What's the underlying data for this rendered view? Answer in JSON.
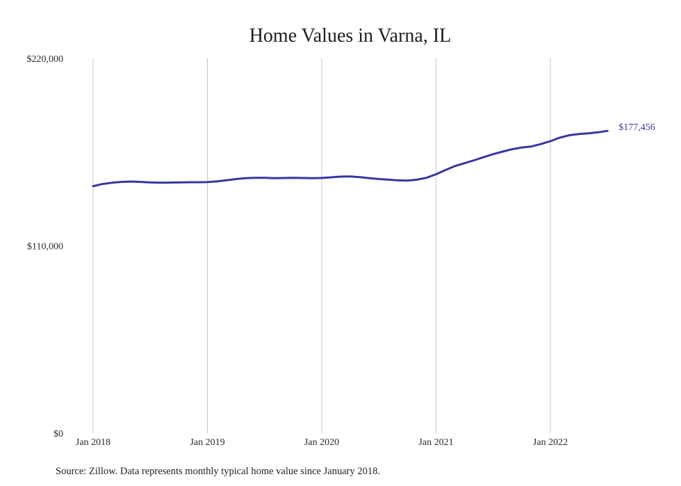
{
  "chart_data": {
    "type": "line",
    "title": "Home Values in Varna, IL",
    "xlabel": "",
    "ylabel": "",
    "ylim": [
      0,
      220000
    ],
    "y_ticks": [
      {
        "value": 0,
        "label": "$0"
      },
      {
        "value": 110000,
        "label": "$110,000"
      },
      {
        "value": 220000,
        "label": "$220,000"
      }
    ],
    "x_ticks": [
      {
        "value": "2018-01",
        "label": "Jan 2018"
      },
      {
        "value": "2019-01",
        "label": "Jan 2019"
      },
      {
        "value": "2020-01",
        "label": "Jan 2020"
      },
      {
        "value": "2021-01",
        "label": "Jan 2021"
      },
      {
        "value": "2022-01",
        "label": "Jan 2022"
      }
    ],
    "grid": {
      "vertical": true,
      "horizontal": false
    },
    "x": [
      "2018-01",
      "2018-02",
      "2018-03",
      "2018-04",
      "2018-05",
      "2018-06",
      "2018-07",
      "2018-08",
      "2018-09",
      "2018-10",
      "2018-11",
      "2018-12",
      "2019-01",
      "2019-02",
      "2019-03",
      "2019-04",
      "2019-05",
      "2019-06",
      "2019-07",
      "2019-08",
      "2019-09",
      "2019-10",
      "2019-11",
      "2019-12",
      "2020-01",
      "2020-02",
      "2020-03",
      "2020-04",
      "2020-05",
      "2020-06",
      "2020-07",
      "2020-08",
      "2020-09",
      "2020-10",
      "2020-11",
      "2020-12",
      "2021-01",
      "2021-02",
      "2021-03",
      "2021-04",
      "2021-05",
      "2021-06",
      "2021-07",
      "2021-08",
      "2021-09",
      "2021-10",
      "2021-11",
      "2021-12",
      "2022-01",
      "2022-02",
      "2022-03",
      "2022-04",
      "2022-05",
      "2022-06",
      "2022-07"
    ],
    "series": [
      {
        "color": "#3a35a0",
        "values": [
          145000,
          146300,
          147000,
          147500,
          147700,
          147500,
          147200,
          147000,
          147100,
          147200,
          147300,
          147300,
          147400,
          147800,
          148500,
          149200,
          149700,
          149900,
          149900,
          149700,
          149800,
          149900,
          149800,
          149700,
          149800,
          150200,
          150600,
          150700,
          150300,
          149700,
          149200,
          148800,
          148400,
          148300,
          148800,
          149900,
          152000,
          154500,
          156800,
          158500,
          160200,
          162000,
          163800,
          165300,
          166700,
          167700,
          168300,
          169700,
          171400,
          173500,
          174900,
          175600,
          176000,
          176600,
          177456
        ],
        "end_label": "$177,456"
      }
    ],
    "source": "Source: Zillow. Data represents monthly typical home value since January 2018."
  }
}
